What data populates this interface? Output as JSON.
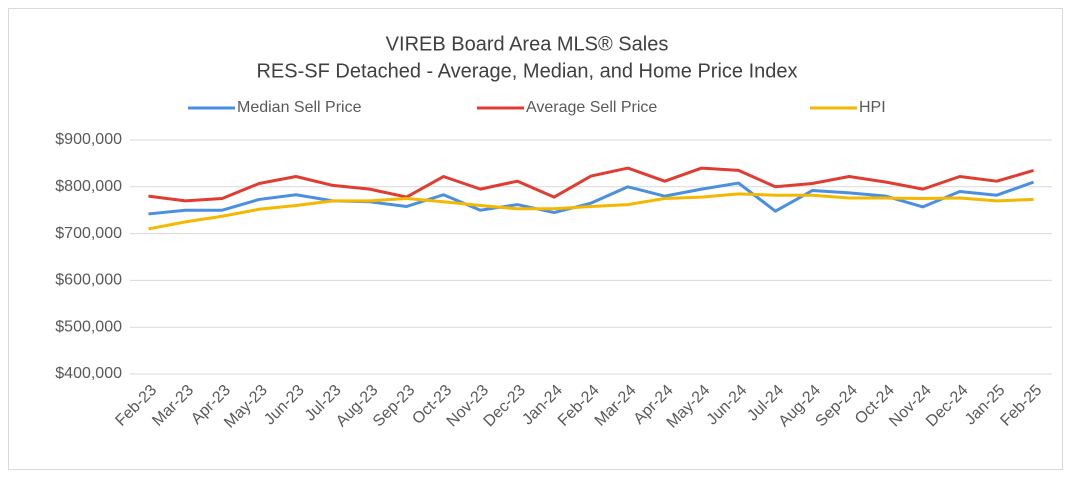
{
  "chart_data": {
    "type": "line",
    "title": "VIREB Board Area MLS® Sales",
    "subtitle": "RES-SF Detached - Average, Median, and Home Price Index",
    "categories": [
      "Feb-23",
      "Mar-23",
      "Apr-23",
      "May-23",
      "Jun-23",
      "Jul-23",
      "Aug-23",
      "Sep-23",
      "Oct-23",
      "Nov-23",
      "Dec-23",
      "Jan-24",
      "Feb-24",
      "Mar-24",
      "Apr-24",
      "May-24",
      "Jun-24",
      "Jul-24",
      "Aug-24",
      "Sep-24",
      "Oct-24",
      "Nov-24",
      "Dec-24",
      "Jan-25",
      "Feb-25"
    ],
    "series": [
      {
        "name": "Median Sell Price",
        "color": "#4a8fe0",
        "values": [
          742000,
          750000,
          750000,
          773000,
          783000,
          770000,
          768000,
          758000,
          783000,
          750000,
          762000,
          745000,
          765000,
          800000,
          780000,
          795000,
          808000,
          748000,
          792000,
          787000,
          780000,
          757000,
          790000,
          782000,
          810000
        ]
      },
      {
        "name": "Average Sell Price",
        "color": "#e03c31",
        "values": [
          780000,
          770000,
          775000,
          807000,
          822000,
          803000,
          795000,
          778000,
          822000,
          795000,
          812000,
          778000,
          823000,
          840000,
          812000,
          840000,
          835000,
          800000,
          807000,
          822000,
          810000,
          795000,
          822000,
          812000,
          835000
        ]
      },
      {
        "name": "HPI",
        "color": "#f5b800",
        "values": [
          710000,
          725000,
          737000,
          752000,
          760000,
          770000,
          770000,
          775000,
          768000,
          760000,
          753000,
          753000,
          758000,
          762000,
          775000,
          778000,
          785000,
          782000,
          782000,
          776000,
          776000,
          775000,
          776000,
          770000,
          773000
        ]
      }
    ],
    "ylim": [
      400000,
      900000
    ],
    "yticks": [
      {
        "value": 400000,
        "label": "$400,000"
      },
      {
        "value": 500000,
        "label": "$500,000"
      },
      {
        "value": 600000,
        "label": "$600,000"
      },
      {
        "value": 700000,
        "label": "$700,000"
      },
      {
        "value": 800000,
        "label": "$800,000"
      },
      {
        "value": 900000,
        "label": "$900,000"
      }
    ],
    "grid": true,
    "legend": "top"
  }
}
